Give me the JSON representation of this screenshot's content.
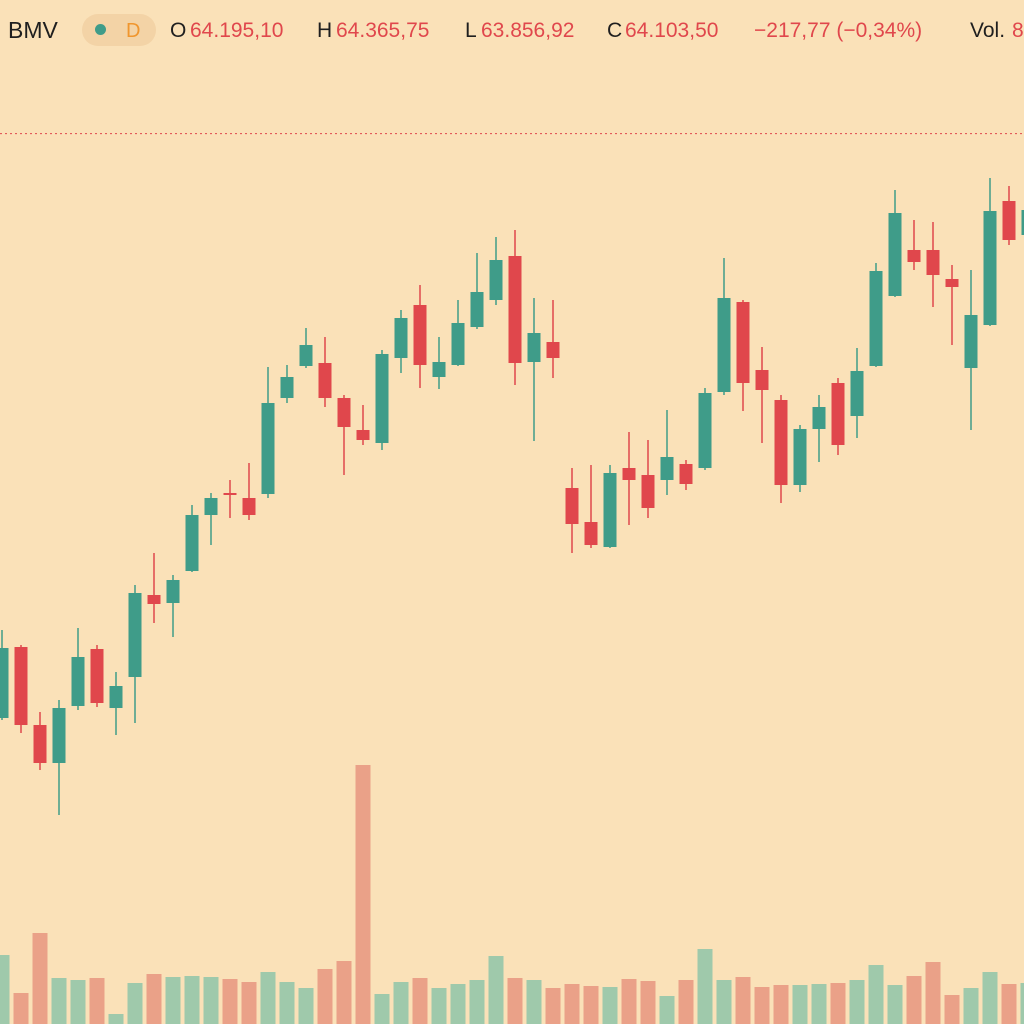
{
  "header": {
    "symbol": "BMV",
    "interval": "D",
    "open_label": "O",
    "open": "64.195,10",
    "high_label": "H",
    "high": "64.365,75",
    "low_label": "L",
    "low": "63.856,92",
    "close_label": "C",
    "close": "64.103,50",
    "change": "−217,77 (−0,34%)",
    "volume_label": "Vol.",
    "volume": "8"
  },
  "chart_data": {
    "type": "candlestick",
    "up_color": "#3f9c89",
    "down_color": "#e0474c",
    "volume_up_color": "#9fc9ab",
    "volume_down_color": "#eaa188",
    "ylim": [
      55200,
      65440
    ],
    "volume_lim": [
      0,
      1024
    ],
    "price_line": 64103.5,
    "price_line_color": "#e0474c",
    "open": [
      58260,
      58970,
      58190,
      57810,
      58380,
      58950,
      58360,
      58670,
      59490,
      59410,
      59730,
      60290,
      60510,
      60460,
      60500,
      61460,
      61780,
      61810,
      61460,
      61140,
      61010,
      61860,
      62390,
      61670,
      61790,
      62170,
      62440,
      62880,
      61820,
      62020,
      60560,
      60220,
      59970,
      60760,
      60690,
      60640,
      60800,
      60760,
      61520,
      62420,
      61740,
      61440,
      60590,
      61150,
      61610,
      61280,
      61780,
      62480,
      62940,
      62940,
      62650,
      61760,
      62190,
      63430,
      63090
    ],
    "high": [
      59140,
      58990,
      58320,
      58440,
      59160,
      58990,
      58720,
      59590,
      59910,
      59690,
      60390,
      60510,
      60640,
      60810,
      61770,
      61790,
      62160,
      62070,
      61490,
      61390,
      61940,
      62340,
      62590,
      62070,
      62440,
      62910,
      63070,
      63140,
      62460,
      62440,
      60760,
      60790,
      60790,
      61120,
      61040,
      61340,
      60840,
      61560,
      62860,
      62440,
      61970,
      61490,
      61190,
      61490,
      61660,
      61960,
      62810,
      63540,
      63240,
      63220,
      62790,
      62740,
      63660,
      63580,
      63440
    ],
    "low": [
      58240,
      58110,
      57740,
      57290,
      58340,
      58370,
      58090,
      58210,
      59210,
      59070,
      59720,
      59990,
      60260,
      60240,
      60460,
      61410,
      61760,
      61370,
      60690,
      60990,
      60940,
      61710,
      61560,
      61550,
      61780,
      62150,
      62390,
      61590,
      61030,
      61660,
      59910,
      59960,
      59960,
      60190,
      60260,
      60490,
      60540,
      60740,
      61490,
      61330,
      61010,
      60410,
      60520,
      60820,
      60890,
      61060,
      61770,
      62470,
      62740,
      62370,
      61990,
      61140,
      62180,
      62990,
      62920
    ],
    "close": [
      58960,
      58190,
      57810,
      58360,
      58870,
      58410,
      58580,
      59510,
      59400,
      59640,
      60290,
      60460,
      60490,
      60290,
      61410,
      61670,
      61990,
      61460,
      61170,
      61040,
      61900,
      62260,
      61790,
      61820,
      62210,
      62520,
      62840,
      61810,
      62110,
      61860,
      60200,
      59990,
      60710,
      60640,
      60360,
      60870,
      60600,
      61510,
      62460,
      61610,
      61540,
      60590,
      61150,
      61370,
      60990,
      61730,
      62730,
      63310,
      62820,
      62690,
      62570,
      62290,
      63330,
      63040,
      63340
    ],
    "volume": [
      69,
      31,
      91,
      46,
      44,
      46,
      10,
      41,
      50,
      47,
      48,
      47,
      45,
      42,
      52,
      42,
      36,
      55,
      63,
      259,
      30,
      42,
      46,
      36,
      40,
      44,
      68,
      46,
      44,
      36,
      40,
      38,
      37,
      45,
      43,
      28,
      44,
      75,
      44,
      47,
      37,
      39,
      39,
      40,
      41,
      44,
      59,
      39,
      48,
      62,
      29,
      36,
      52,
      40,
      41
    ]
  }
}
